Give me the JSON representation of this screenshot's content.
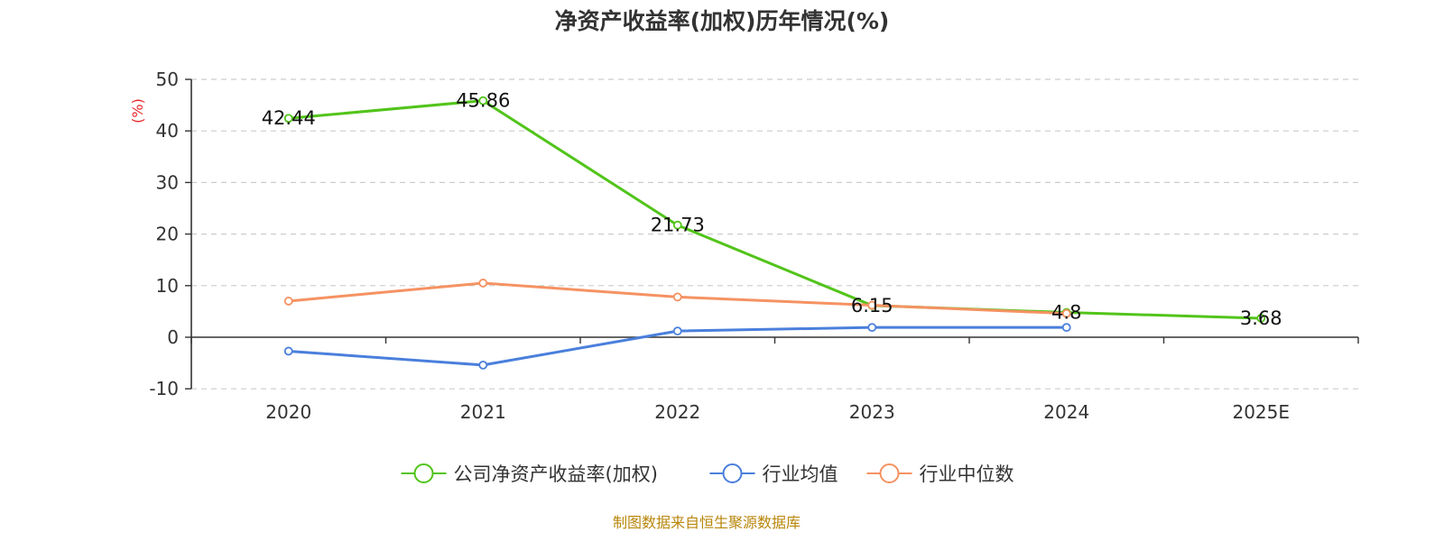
{
  "chart_data": {
    "type": "line",
    "title": "净资产收益率(加权)历年情况(%)",
    "ylabel": "(%)",
    "categories": [
      "2020",
      "2021",
      "2022",
      "2023",
      "2024",
      "2025E"
    ],
    "yticks": [
      "-10",
      "0",
      "10",
      "20",
      "30",
      "40",
      "50"
    ],
    "ylim": [
      -10,
      50
    ],
    "grid": true,
    "legend_position": "bottom",
    "series": [
      {
        "name": "公司净资产收益率(加权)",
        "color": "#52c41a",
        "values": [
          42.44,
          45.86,
          21.73,
          6.15,
          4.8,
          3.68
        ],
        "labels": [
          "42.44",
          "45.86",
          "21.73",
          "6.15",
          "4.8",
          "3.68"
        ]
      },
      {
        "name": "行业均值",
        "color": "#4a7fdc",
        "values": [
          -2.7,
          -5.4,
          1.2,
          1.9,
          1.9,
          null
        ]
      },
      {
        "name": "行业中位数",
        "color": "#f59262",
        "values": [
          7.0,
          10.5,
          7.8,
          6.2,
          4.6,
          null
        ]
      }
    ]
  },
  "source_text": "制图数据来自恒生聚源数据库",
  "colors": {
    "ylabel": "#e8282c",
    "source": "#b8860b",
    "axis": "#333333",
    "grid": "#cccccc"
  }
}
